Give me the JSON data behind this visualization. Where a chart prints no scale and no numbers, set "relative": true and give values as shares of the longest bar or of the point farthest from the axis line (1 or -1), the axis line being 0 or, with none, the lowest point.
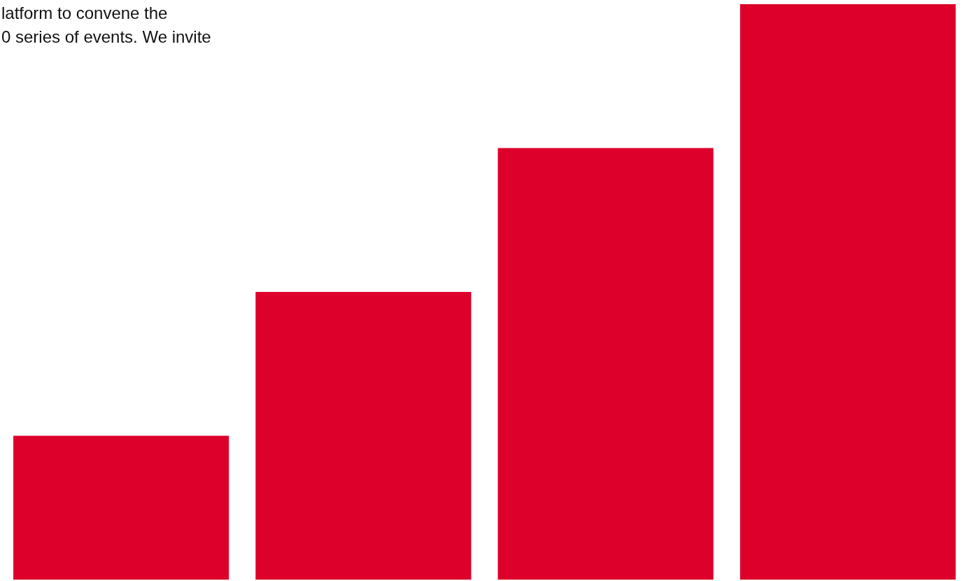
{
  "chart_data": {
    "type": "bar",
    "relative": true,
    "categories": [
      null,
      null,
      null,
      null
    ],
    "values": [
      0.25,
      0.5,
      0.75,
      1
    ],
    "color": "#dc002b",
    "annotations": [
      "latform to convene the",
      "0 series of events. We invite"
    ],
    "legend": false,
    "tick_labels": false
  }
}
